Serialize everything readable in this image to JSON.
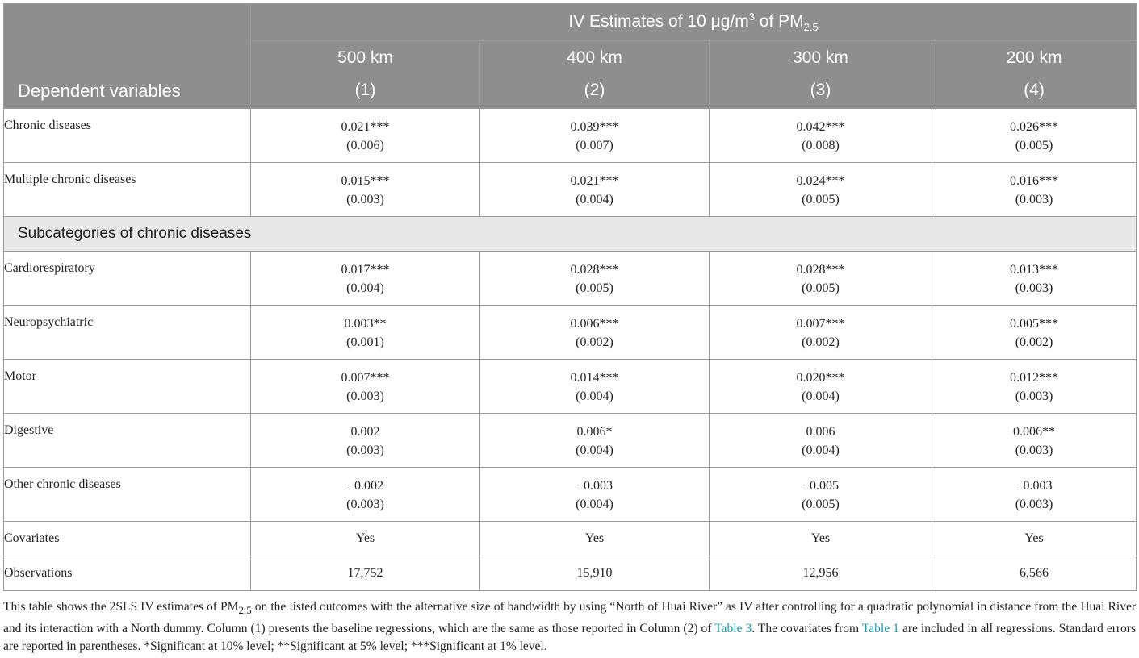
{
  "header": {
    "spanner": "IV Estimates of 10 μg/m³ of PM2.5",
    "spanner_pre": "IV Estimates of 10 ",
    "spanner_unit": "μg/m",
    "spanner_exp": "3",
    "spanner_mid": " of PM",
    "spanner_sub": "2.5",
    "dep_label": "Dependent variables",
    "columns": [
      {
        "bandwidth": "500 km",
        "number": "(1)"
      },
      {
        "bandwidth": "400 km",
        "number": "(2)"
      },
      {
        "bandwidth": "300 km",
        "number": "(3)"
      },
      {
        "bandwidth": "200 km",
        "number": "(4)"
      }
    ]
  },
  "rows": [
    {
      "label": "Chronic diseases",
      "values": [
        [
          "0.021***",
          "(0.006)"
        ],
        [
          "0.039***",
          "(0.007)"
        ],
        [
          "0.042***",
          "(0.008)"
        ],
        [
          "0.026***",
          "(0.005)"
        ]
      ]
    },
    {
      "label": "Multiple chronic diseases",
      "values": [
        [
          "0.015***",
          "(0.003)"
        ],
        [
          "0.021***",
          "(0.004)"
        ],
        [
          "0.024***",
          "(0.005)"
        ],
        [
          "0.016***",
          "(0.003)"
        ]
      ]
    }
  ],
  "subcategory_heading": "Subcategories of chronic diseases",
  "subrows": [
    {
      "label": "Cardiorespiratory",
      "values": [
        [
          "0.017***",
          "(0.004)"
        ],
        [
          "0.028***",
          "(0.005)"
        ],
        [
          "0.028***",
          "(0.005)"
        ],
        [
          "0.013***",
          "(0.003)"
        ]
      ]
    },
    {
      "label": "Neuropsychiatric",
      "values": [
        [
          "0.003**",
          "(0.001)"
        ],
        [
          "0.006***",
          "(0.002)"
        ],
        [
          "0.007***",
          "(0.002)"
        ],
        [
          "0.005***",
          "(0.002)"
        ]
      ]
    },
    {
      "label": "Motor",
      "values": [
        [
          "0.007***",
          "(0.003)"
        ],
        [
          "0.014***",
          "(0.004)"
        ],
        [
          "0.020***",
          "(0.004)"
        ],
        [
          "0.012***",
          "(0.003)"
        ]
      ]
    },
    {
      "label": "Digestive",
      "values": [
        [
          "0.002",
          "(0.003)"
        ],
        [
          "0.006*",
          "(0.004)"
        ],
        [
          "0.006",
          "(0.004)"
        ],
        [
          "0.006**",
          "(0.003)"
        ]
      ]
    },
    {
      "label": "Other chronic diseases",
      "values": [
        [
          "−0.002",
          "(0.003)"
        ],
        [
          "−0.003",
          "(0.004)"
        ],
        [
          "−0.005",
          "(0.005)"
        ],
        [
          "−0.003",
          "(0.003)"
        ]
      ]
    }
  ],
  "covariates": {
    "label": "Covariates",
    "values": [
      "Yes",
      "Yes",
      "Yes",
      "Yes"
    ]
  },
  "observations": {
    "label": "Observations",
    "values": [
      "17,752",
      "15,910",
      "12,956",
      "6,566"
    ]
  },
  "note": {
    "p1": "This table shows the 2SLS IV estimates of PM",
    "p1_sub": "2.5",
    "p2": " on the listed outcomes with the alternative size of bandwidth by using “North of Huai River” as IV after controlling for a quadratic polynomial in distance from the Huai River and its interaction with a North dummy. Column (1) presents the baseline regressions, which are the same as those reported in Column (2) of ",
    "link_table3": "Table 3",
    "p3": ". The covariates from ",
    "link_table1": "Table 1",
    "p4": " are included in all regressions. Standard errors are reported in parentheses. *Significant at 10% level; **Significant at 5% level; ***Significant at 1% level."
  },
  "colors": {
    "header_bg": "#8e8e8e",
    "subheading_bg": "#e8e8e8",
    "link": "#1a9bb0"
  }
}
